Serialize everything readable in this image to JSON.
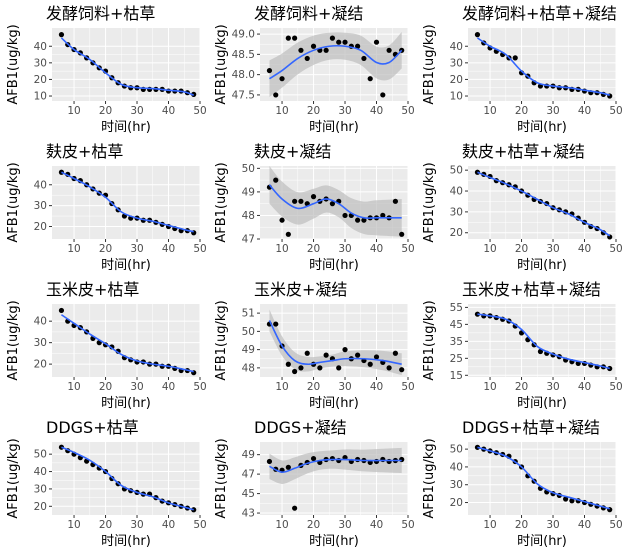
{
  "shared": {
    "xlabel": "时间(hr)",
    "ylabel": "AFB1(ug/kg)",
    "xlim": [
      3,
      50
    ],
    "xticks": [
      10,
      20,
      30,
      40,
      50
    ],
    "colors": {
      "panel_bg": "#ebebeb",
      "grid": "#ffffff",
      "point": "#000000",
      "smooth": "#3366ff",
      "band": "#bdbdbd"
    }
  },
  "chart_data": [
    {
      "type": "scatter",
      "title": "发酵饲料+枯草",
      "ylim": [
        7,
        51
      ],
      "yticks": [
        10,
        20,
        30,
        40
      ],
      "x": [
        6,
        8,
        10,
        12,
        14,
        16,
        18,
        20,
        22,
        24,
        26,
        28,
        30,
        32,
        34,
        36,
        38,
        40,
        42,
        44,
        46,
        48
      ],
      "y": [
        47,
        41,
        38,
        36,
        33,
        30,
        27,
        25,
        21,
        18,
        16,
        15,
        15,
        14,
        14,
        14,
        14,
        13,
        13,
        13,
        12,
        11
      ],
      "smooth": [
        [
          6,
          45
        ],
        [
          10,
          38
        ],
        [
          15,
          32
        ],
        [
          20,
          24
        ],
        [
          25,
          17
        ],
        [
          30,
          15
        ],
        [
          35,
          14.5
        ],
        [
          40,
          13.5
        ],
        [
          45,
          12.5
        ],
        [
          48,
          10.5
        ]
      ]
    },
    {
      "type": "scatter",
      "title": "发酵饲料+凝结",
      "ylim": [
        47.35,
        49.15
      ],
      "yticks": [
        47.5,
        48.0,
        48.5,
        49.0
      ],
      "x": [
        6,
        8,
        10,
        12,
        14,
        16,
        18,
        20,
        22,
        24,
        26,
        28,
        30,
        32,
        34,
        36,
        38,
        40,
        42,
        44,
        46,
        48
      ],
      "y": [
        48.1,
        47.5,
        47.9,
        48.9,
        48.9,
        48.6,
        48.4,
        48.7,
        48.6,
        48.6,
        48.9,
        48.8,
        48.8,
        48.7,
        48.7,
        48.4,
        47.9,
        48.8,
        47.5,
        48.6,
        48.5,
        48.6
      ],
      "smooth": [
        [
          6,
          47.9
        ],
        [
          10,
          48.1
        ],
        [
          15,
          48.4
        ],
        [
          20,
          48.6
        ],
        [
          25,
          48.7
        ],
        [
          30,
          48.7
        ],
        [
          35,
          48.6
        ],
        [
          40,
          48.3
        ],
        [
          44,
          48.3
        ],
        [
          48,
          48.6
        ]
      ],
      "band": [
        0.32,
        0.45
      ]
    },
    {
      "type": "scatter",
      "title": "发酵饲料+枯草+凝结",
      "ylim": [
        7,
        51
      ],
      "yticks": [
        10,
        20,
        30,
        40
      ],
      "x": [
        6,
        8,
        10,
        12,
        14,
        16,
        18,
        20,
        22,
        24,
        26,
        28,
        30,
        32,
        34,
        36,
        38,
        40,
        42,
        44,
        46,
        48
      ],
      "y": [
        47,
        42,
        39,
        37,
        35,
        33,
        33,
        24,
        22,
        18,
        16,
        16,
        16,
        15,
        15,
        14,
        14,
        13,
        12,
        12,
        11,
        10
      ],
      "smooth": [
        [
          6,
          45
        ],
        [
          10,
          40
        ],
        [
          15,
          35
        ],
        [
          20,
          25
        ],
        [
          25,
          18
        ],
        [
          30,
          16
        ],
        [
          35,
          15
        ],
        [
          40,
          13.5
        ],
        [
          45,
          12
        ],
        [
          48,
          10.5
        ]
      ]
    },
    {
      "type": "scatter",
      "title": "麸皮+枯草",
      "ylim": [
        14,
        49
      ],
      "yticks": [
        20,
        30,
        40
      ],
      "x": [
        6,
        8,
        10,
        12,
        14,
        16,
        18,
        20,
        22,
        24,
        26,
        28,
        30,
        32,
        34,
        36,
        38,
        40,
        42,
        44,
        46,
        48
      ],
      "y": [
        46,
        45,
        43,
        42,
        40,
        38,
        36,
        35,
        31,
        28,
        25,
        24,
        24,
        23,
        23,
        22,
        21,
        20,
        19,
        18,
        18,
        17
      ],
      "smooth": [
        [
          6,
          46
        ],
        [
          10,
          43
        ],
        [
          15,
          39
        ],
        [
          20,
          34
        ],
        [
          25,
          27
        ],
        [
          30,
          24
        ],
        [
          35,
          22.5
        ],
        [
          40,
          20.5
        ],
        [
          45,
          18.5
        ],
        [
          48,
          17.5
        ]
      ]
    },
    {
      "type": "scatter",
      "title": "麸皮+凝结",
      "ylim": [
        47,
        50.1
      ],
      "yticks": [
        47,
        48,
        49,
        50
      ],
      "x": [
        6,
        8,
        10,
        12,
        14,
        16,
        18,
        20,
        22,
        24,
        26,
        28,
        30,
        32,
        34,
        36,
        38,
        40,
        42,
        44,
        46,
        48
      ],
      "y": [
        49.2,
        49.5,
        47.8,
        47.2,
        48.6,
        48.6,
        48.5,
        48.8,
        48.6,
        48.7,
        48.5,
        48.6,
        48.0,
        48.0,
        47.8,
        47.8,
        47.9,
        47.9,
        48.0,
        47.9,
        48.6,
        47.2
      ],
      "smooth": [
        [
          6,
          49.3
        ],
        [
          10,
          48.7
        ],
        [
          15,
          48.3
        ],
        [
          20,
          48.5
        ],
        [
          24,
          48.7
        ],
        [
          28,
          48.5
        ],
        [
          32,
          48.1
        ],
        [
          36,
          47.9
        ],
        [
          40,
          47.9
        ],
        [
          48,
          47.9
        ]
      ],
      "band": [
        0.55,
        0.8
      ]
    },
    {
      "type": "scatter",
      "title": "麸皮+枯草+凝结",
      "ylim": [
        17,
        52
      ],
      "yticks": [
        20,
        30,
        40,
        50
      ],
      "x": [
        6,
        8,
        10,
        12,
        14,
        16,
        18,
        20,
        22,
        24,
        26,
        28,
        30,
        32,
        34,
        36,
        38,
        40,
        42,
        44,
        46,
        48
      ],
      "y": [
        49,
        48,
        47,
        45,
        44,
        43,
        42,
        40,
        38,
        36,
        35,
        34,
        32,
        31,
        30,
        29,
        27,
        25,
        23,
        22,
        20,
        18
      ],
      "smooth": [
        [
          6,
          49
        ],
        [
          10,
          46.5
        ],
        [
          15,
          43.5
        ],
        [
          20,
          40
        ],
        [
          25,
          36
        ],
        [
          30,
          32
        ],
        [
          35,
          29
        ],
        [
          40,
          25
        ],
        [
          45,
          21.5
        ],
        [
          48,
          18.5
        ]
      ]
    },
    {
      "type": "scatter",
      "title": "玉米皮+枯草",
      "ylim": [
        14,
        48
      ],
      "yticks": [
        20,
        30,
        40
      ],
      "x": [
        6,
        8,
        10,
        12,
        14,
        16,
        18,
        20,
        22,
        24,
        26,
        28,
        30,
        32,
        34,
        36,
        38,
        40,
        42,
        44,
        46,
        48
      ],
      "y": [
        45,
        40,
        38,
        37,
        35,
        32,
        30,
        29,
        28,
        26,
        23,
        22,
        21,
        21,
        20,
        20,
        19,
        19,
        18,
        17,
        17,
        16
      ],
      "smooth": [
        [
          6,
          43
        ],
        [
          10,
          39
        ],
        [
          15,
          34
        ],
        [
          20,
          29.5
        ],
        [
          25,
          24.5
        ],
        [
          30,
          21.5
        ],
        [
          35,
          20
        ],
        [
          40,
          19
        ],
        [
          45,
          17.5
        ],
        [
          48,
          16.5
        ]
      ]
    },
    {
      "type": "scatter",
      "title": "玉米皮+凝结",
      "ylim": [
        47.5,
        51.5
      ],
      "yticks": [
        48,
        49,
        50,
        51
      ],
      "x": [
        6,
        8,
        10,
        12,
        14,
        16,
        18,
        20,
        22,
        24,
        26,
        28,
        30,
        32,
        34,
        36,
        38,
        40,
        42,
        44,
        46,
        48
      ],
      "y": [
        50.4,
        50.4,
        49.2,
        48.2,
        47.8,
        48.0,
        48.8,
        48.2,
        48.0,
        48.7,
        48.5,
        48.0,
        49.0,
        48.5,
        48.7,
        48.4,
        48.2,
        48.6,
        48.3,
        48.0,
        48.8,
        47.9
      ],
      "smooth": [
        [
          6,
          50.6
        ],
        [
          10,
          49.2
        ],
        [
          14,
          48.4
        ],
        [
          18,
          48.2
        ],
        [
          22,
          48.3
        ],
        [
          26,
          48.4
        ],
        [
          30,
          48.5
        ],
        [
          36,
          48.5
        ],
        [
          42,
          48.4
        ],
        [
          48,
          48.2
        ]
      ],
      "band": [
        0.3,
        0.6
      ]
    },
    {
      "type": "scatter",
      "title": "玉米皮+枯草+凝结",
      "ylim": [
        14,
        57
      ],
      "yticks": [
        15,
        25,
        35,
        45,
        55
      ],
      "x": [
        6,
        8,
        10,
        12,
        14,
        16,
        18,
        20,
        22,
        24,
        26,
        28,
        30,
        32,
        34,
        36,
        38,
        40,
        42,
        44,
        46,
        48
      ],
      "y": [
        51,
        50,
        50,
        49,
        48,
        47,
        44,
        40,
        36,
        33,
        29,
        28,
        27,
        26,
        24,
        23,
        22,
        22,
        21,
        20,
        20,
        19
      ],
      "smooth": [
        [
          6,
          51
        ],
        [
          10,
          50
        ],
        [
          15,
          48
        ],
        [
          20,
          42
        ],
        [
          25,
          32
        ],
        [
          30,
          27.5
        ],
        [
          35,
          24.5
        ],
        [
          40,
          22.5
        ],
        [
          45,
          20.5
        ],
        [
          48,
          19
        ]
      ]
    },
    {
      "type": "scatter",
      "title": "DDGS+枯草",
      "ylim": [
        15,
        57
      ],
      "yticks": [
        20,
        30,
        40,
        50
      ],
      "x": [
        6,
        8,
        10,
        12,
        14,
        16,
        18,
        20,
        22,
        24,
        26,
        28,
        30,
        32,
        34,
        36,
        38,
        40,
        42,
        44,
        46,
        48
      ],
      "y": [
        54,
        52,
        50,
        48,
        46,
        44,
        42,
        40,
        36,
        33,
        30,
        29,
        28,
        27,
        27,
        25,
        23,
        22,
        21,
        20,
        19,
        18
      ],
      "smooth": [
        [
          6,
          54
        ],
        [
          10,
          51
        ],
        [
          15,
          46.5
        ],
        [
          20,
          40
        ],
        [
          25,
          32
        ],
        [
          30,
          28
        ],
        [
          35,
          25.5
        ],
        [
          40,
          22
        ],
        [
          45,
          19.5
        ],
        [
          48,
          18
        ]
      ]
    },
    {
      "type": "scatter",
      "title": "DDGS+凝结",
      "ylim": [
        42.8,
        50.3
      ],
      "yticks": [
        43,
        45,
        47,
        49
      ],
      "x": [
        6,
        8,
        10,
        12,
        14,
        16,
        18,
        20,
        22,
        24,
        26,
        28,
        30,
        32,
        34,
        36,
        38,
        40,
        42,
        44,
        46,
        48
      ],
      "y": [
        48.3,
        47.5,
        47.4,
        47.7,
        43.5,
        47.9,
        48.2,
        48.6,
        48.2,
        48.5,
        48.6,
        48.4,
        48.7,
        48.3,
        48.5,
        48.4,
        48.2,
        48.3,
        48.5,
        48.3,
        48.4,
        48.5
      ],
      "smooth": [
        [
          6,
          47.8
        ],
        [
          10,
          47.2
        ],
        [
          14,
          47.6
        ],
        [
          18,
          48.1
        ],
        [
          22,
          48.4
        ],
        [
          26,
          48.5
        ],
        [
          30,
          48.5
        ],
        [
          36,
          48.4
        ],
        [
          42,
          48.4
        ],
        [
          48,
          48.4
        ]
      ],
      "band": [
        0.9,
        1.3
      ]
    },
    {
      "type": "scatter",
      "title": "DDGS+枯草+凝结",
      "ylim": [
        13,
        54
      ],
      "yticks": [
        20,
        30,
        40,
        50
      ],
      "x": [
        6,
        8,
        10,
        12,
        14,
        16,
        18,
        20,
        22,
        24,
        26,
        28,
        30,
        32,
        34,
        36,
        38,
        40,
        42,
        44,
        46,
        48
      ],
      "y": [
        51,
        50,
        49,
        48,
        47,
        46,
        43,
        40,
        35,
        32,
        28,
        26,
        25,
        24,
        22,
        21,
        21,
        20,
        19,
        18,
        17,
        16
      ],
      "smooth": [
        [
          6,
          51
        ],
        [
          10,
          49
        ],
        [
          15,
          46
        ],
        [
          20,
          40
        ],
        [
          25,
          30.5
        ],
        [
          30,
          25.5
        ],
        [
          35,
          23
        ],
        [
          40,
          20.5
        ],
        [
          45,
          18
        ],
        [
          48,
          16.5
        ]
      ]
    }
  ]
}
